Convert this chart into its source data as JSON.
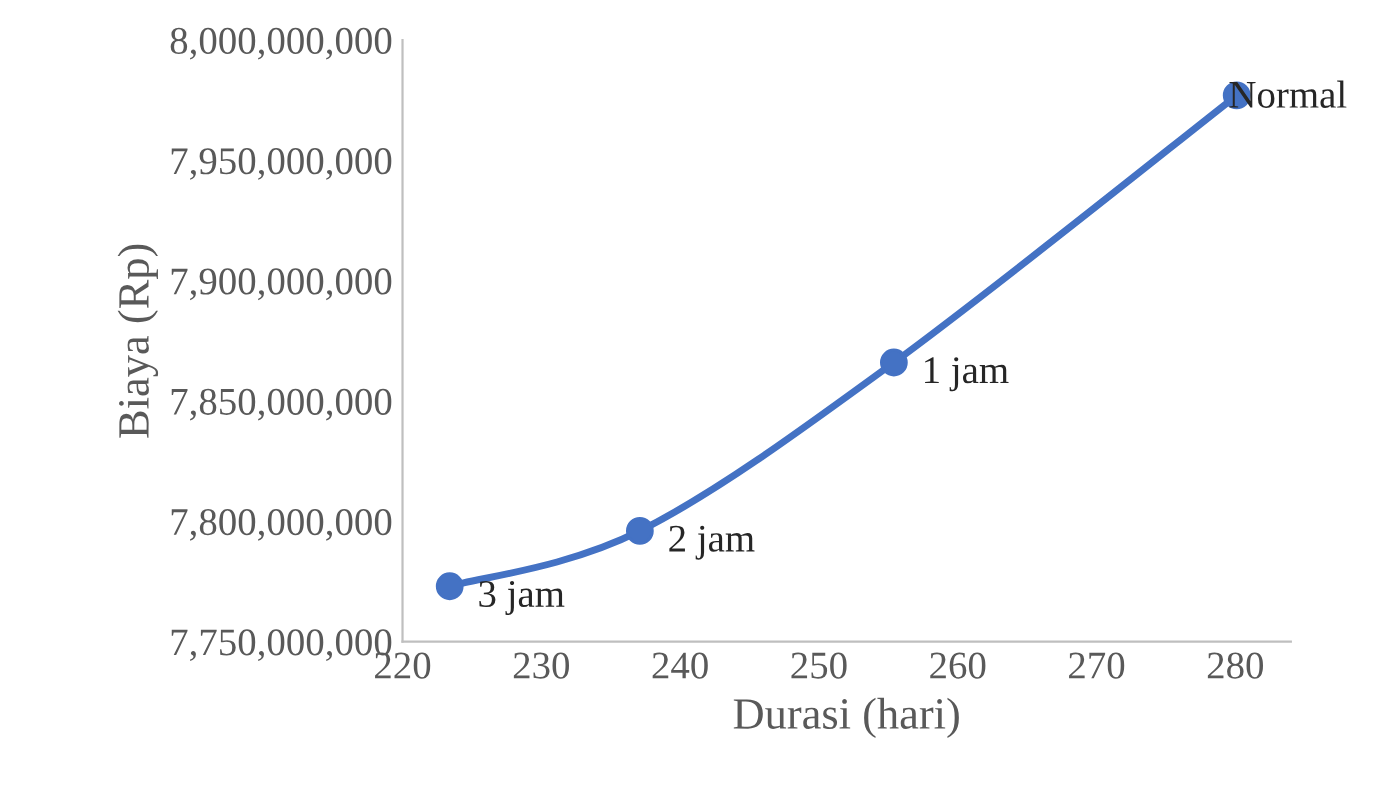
{
  "chart_data": {
    "type": "line",
    "xlabel": "Durasi (hari)",
    "ylabel": "Biaya (Rp)",
    "series": [
      {
        "color": "#4472c4",
        "x": [
          223.4,
          237.1,
          255.4,
          280.1
        ],
        "values": [
          7773000000,
          7796000000,
          7866000000,
          7977000000
        ]
      }
    ],
    "marker": "circle",
    "line_style": "solid",
    "grid": false,
    "legend": false,
    "xlim": [
      220,
      284
    ],
    "xticks": [
      220,
      230,
      240,
      250,
      260,
      270,
      280
    ],
    "ylim": [
      7750000000,
      8000000000
    ],
    "yticks": [
      {
        "value": 7750000000,
        "label": "7,750,000,000"
      },
      {
        "value": 7800000000,
        "label": "7,800,000,000"
      },
      {
        "value": 7850000000,
        "label": "7,850,000,000"
      },
      {
        "value": 7900000000,
        "label": "7,900,000,000"
      },
      {
        "value": 7950000000,
        "label": "7,950,000,000"
      },
      {
        "value": 8000000000,
        "label": "8,000,000,000"
      }
    ],
    "annotations": [
      {
        "text": "3 jam",
        "x": 223.4,
        "y": 7773000000
      },
      {
        "text": "2 jam",
        "x": 237.1,
        "y": 7796000000
      },
      {
        "text": "1 jam",
        "x": 255.4,
        "y": 7866000000
      },
      {
        "text": "Normal",
        "x": 280.1,
        "y": 7977000000
      }
    ]
  }
}
